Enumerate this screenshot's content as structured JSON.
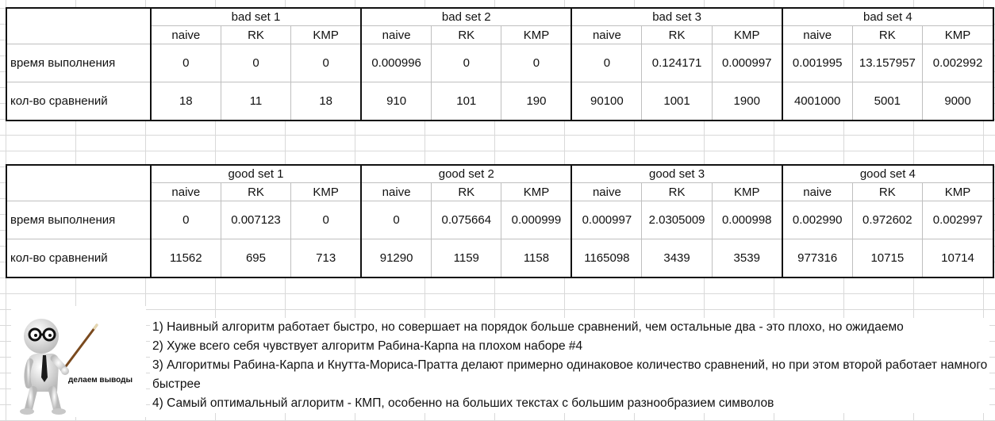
{
  "table_bad": {
    "sets": [
      "bad set 1",
      "bad set 2",
      "bad set 3",
      "bad set 4"
    ],
    "algos": [
      "naive",
      "RK",
      "KMP",
      "naive",
      "RK",
      "KMP",
      "naive",
      "RK",
      "KMP",
      "naive",
      "RK",
      "KMP"
    ],
    "rows": [
      {
        "label": "время выполнения",
        "values": [
          "0",
          "0",
          "0",
          "0.000996",
          "0",
          "0",
          "0",
          "0.124171",
          "0.000997",
          "0.001995",
          "13.157957",
          "0.002992"
        ]
      },
      {
        "label": "кол-во сравнений",
        "values": [
          "18",
          "11",
          "18",
          "910",
          "101",
          "190",
          "90100",
          "1001",
          "1900",
          "4001000",
          "5001",
          "9000"
        ]
      }
    ]
  },
  "table_good": {
    "sets": [
      "good set 1",
      "good set 2",
      "good set 3",
      "good set 4"
    ],
    "algos": [
      "naive",
      "RK",
      "KMP",
      "naive",
      "RK",
      "KMP",
      "naive",
      "RK",
      "KMP",
      "naive",
      "RK",
      "KMP"
    ],
    "rows": [
      {
        "label": "время выполнения",
        "values": [
          "0",
          "0.007123",
          "0",
          "0",
          "0.075664",
          "0.000999",
          "0.000997",
          "2.0305009",
          "0.000998",
          "0.002990",
          "0.972602",
          "0.002997"
        ]
      },
      {
        "label": "кол-во сравнений",
        "values": [
          "11562",
          "695",
          "713",
          "91290",
          "1159",
          "1158",
          "1165098",
          "3439",
          "3539",
          "977316",
          "10715",
          "10714"
        ]
      }
    ]
  },
  "figure_caption": "делаем выводы",
  "notes": [
    "1) Наивный алгоритм работает быстро, но совершает на порядок больше сравнений, чем остальные два - это плохо, но ожидаемо",
    "2) Хуже всего себя чувствует алгоритм Рабина-Карпа на плохом наборе #4",
    "3) Алгоритмы Рабина-Карпа и  Кнутта-Мориса-Пратта делают примерно одинаковое количество сравнений, но при этом второй работает намного быстрее",
    "4) Самый оптимальный аглоритм - КМП, особенно на больших текстах с большим разнообразием символов"
  ]
}
